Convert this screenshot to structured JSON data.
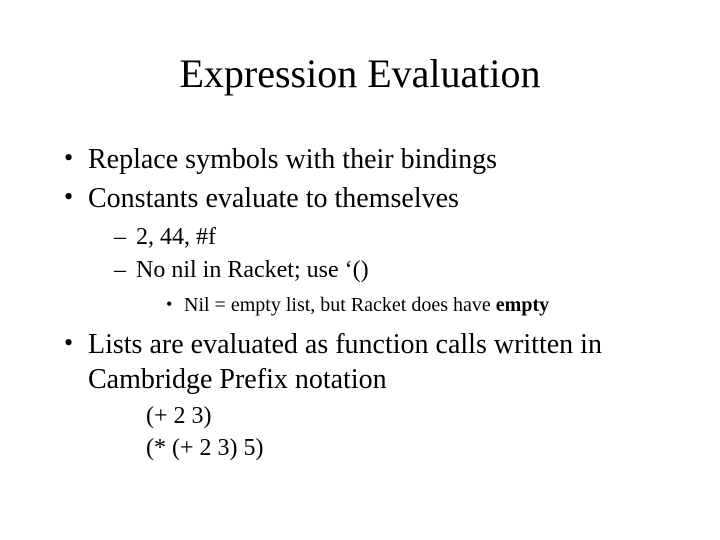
{
  "slide": {
    "title": "Expression Evaluation",
    "title_fontsize": 40,
    "body_fontsize": 28,
    "sub_fontsize": 24,
    "subsub_fontsize": 20,
    "background_color": "#ffffff",
    "text_color": "#000000",
    "font_family": "Times New Roman",
    "bullets": {
      "b1": "Replace symbols with their bindings",
      "b2": "Constants evaluate to themselves",
      "b2_sub1": "2, 44,  #f",
      "b2_sub2": "No nil in Racket;  use ‘()",
      "b2_sub2_note_prefix": "Nil = empty list, but Racket does have ",
      "b2_sub2_note_bold": "empty",
      "b3": "Lists are evaluated as function calls written in Cambridge Prefix notation",
      "b3_code1": "(+ 2 3)",
      "b3_code2": "(* (+ 2 3) 5)"
    }
  }
}
